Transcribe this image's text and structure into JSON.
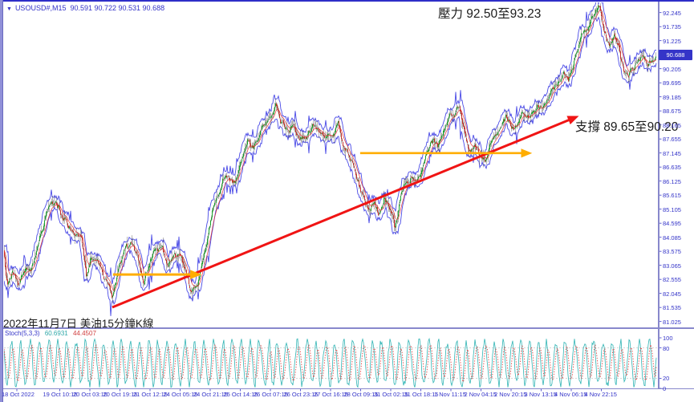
{
  "window": {
    "symbol": "USOUSD#,M15",
    "quote": "90.591 90.722 90.531 90.688",
    "dropdown_icon": "▼"
  },
  "chart_data": {
    "type": "candlestick",
    "symbol": "USOUSD#",
    "timeframe": "M15",
    "title": "USOUSD#,M15 90.591 90.722 90.531 90.688",
    "ohlc": {
      "open": 90.591,
      "high": 90.722,
      "low": 90.531,
      "close": 90.688
    },
    "legend_position": "top-left",
    "grid": "off",
    "price_axis": {
      "ticks": [
        "92.245",
        "91.735",
        "91.225",
        "90.205",
        "89.695",
        "89.185",
        "88.675",
        "88.165",
        "87.655",
        "87.145",
        "86.635",
        "86.125",
        "85.615",
        "85.105",
        "84.595",
        "84.085",
        "83.575",
        "83.065",
        "82.555",
        "82.045",
        "81.535",
        "81.025"
      ],
      "current_price": "90.688",
      "range": [
        81.025,
        92.245
      ]
    },
    "time_axis": [
      "18 Oct 2022",
      "19 Oct 10:15",
      "20 Oct 03:15",
      "20 Oct 19:15",
      "21 Oct 12:15",
      "24 Oct 05:15",
      "24 Oct 21:15",
      "25 Oct 14:15",
      "26 Oct 07:15",
      "26 Oct 23:15",
      "27 Oct 16:15",
      "28 Oct 09:15",
      "31 Oct 02:15",
      "31 Oct 18:15",
      "1 Nov 11:15",
      "2 Nov 04:15",
      "2 Nov 20:15",
      "3 Nov 13:15",
      "4 Nov 06:15",
      "4 Nov 22:15"
    ],
    "price_path_anchors": [
      [
        0.0,
        83.6
      ],
      [
        0.006,
        82.3
      ],
      [
        0.014,
        82.9
      ],
      [
        0.024,
        82.5
      ],
      [
        0.034,
        83.0
      ],
      [
        0.044,
        83.3
      ],
      [
        0.054,
        84.2
      ],
      [
        0.064,
        85.1
      ],
      [
        0.07,
        85.45
      ],
      [
        0.08,
        85.2
      ],
      [
        0.09,
        84.8
      ],
      [
        0.1,
        84.5
      ],
      [
        0.11,
        84.1
      ],
      [
        0.12,
        83.8
      ],
      [
        0.127,
        82.5
      ],
      [
        0.134,
        83.3
      ],
      [
        0.143,
        83.0
      ],
      [
        0.152,
        82.6
      ],
      [
        0.16,
        82.3
      ],
      [
        0.168,
        81.95
      ],
      [
        0.176,
        82.9
      ],
      [
        0.186,
        83.6
      ],
      [
        0.196,
        83.7
      ],
      [
        0.206,
        83.2
      ],
      [
        0.214,
        82.4
      ],
      [
        0.222,
        83.1
      ],
      [
        0.232,
        83.6
      ],
      [
        0.242,
        83.7
      ],
      [
        0.252,
        83.1
      ],
      [
        0.262,
        83.5
      ],
      [
        0.272,
        83.2
      ],
      [
        0.28,
        82.6
      ],
      [
        0.288,
        81.95
      ],
      [
        0.296,
        82.3
      ],
      [
        0.306,
        83.2
      ],
      [
        0.316,
        84.3
      ],
      [
        0.326,
        85.4
      ],
      [
        0.336,
        86.2
      ],
      [
        0.346,
        86.35
      ],
      [
        0.356,
        86.1
      ],
      [
        0.366,
        87.1
      ],
      [
        0.374,
        87.85
      ],
      [
        0.382,
        87.5
      ],
      [
        0.392,
        87.75
      ],
      [
        0.402,
        88.2
      ],
      [
        0.412,
        88.7
      ],
      [
        0.417,
        89.0
      ],
      [
        0.424,
        88.4
      ],
      [
        0.434,
        88.0
      ],
      [
        0.444,
        88.15
      ],
      [
        0.454,
        87.6
      ],
      [
        0.464,
        87.9
      ],
      [
        0.474,
        88.3
      ],
      [
        0.484,
        87.8
      ],
      [
        0.494,
        87.35
      ],
      [
        0.504,
        87.8
      ],
      [
        0.513,
        88.15
      ],
      [
        0.523,
        87.4
      ],
      [
        0.533,
        86.9
      ],
      [
        0.543,
        86.3
      ],
      [
        0.552,
        85.4
      ],
      [
        0.56,
        84.95
      ],
      [
        0.568,
        85.3
      ],
      [
        0.576,
        84.9
      ],
      [
        0.584,
        85.6
      ],
      [
        0.592,
        85.2
      ],
      [
        0.6,
        84.35
      ],
      [
        0.608,
        85.4
      ],
      [
        0.616,
        85.95
      ],
      [
        0.624,
        86.3
      ],
      [
        0.632,
        85.95
      ],
      [
        0.64,
        86.4
      ],
      [
        0.65,
        87.1
      ],
      [
        0.658,
        87.5
      ],
      [
        0.666,
        87.2
      ],
      [
        0.674,
        87.8
      ],
      [
        0.682,
        88.35
      ],
      [
        0.69,
        88.65
      ],
      [
        0.698,
        89.0
      ],
      [
        0.706,
        88.15
      ],
      [
        0.714,
        87.45
      ],
      [
        0.722,
        87.7
      ],
      [
        0.73,
        87.15
      ],
      [
        0.738,
        86.95
      ],
      [
        0.746,
        87.5
      ],
      [
        0.754,
        87.85
      ],
      [
        0.762,
        88.2
      ],
      [
        0.77,
        88.5
      ],
      [
        0.778,
        88.25
      ],
      [
        0.786,
        88.1
      ],
      [
        0.794,
        88.65
      ],
      [
        0.802,
        88.4
      ],
      [
        0.81,
        88.6
      ],
      [
        0.818,
        88.9
      ],
      [
        0.826,
        88.7
      ],
      [
        0.834,
        89.1
      ],
      [
        0.842,
        89.4
      ],
      [
        0.85,
        89.8
      ],
      [
        0.858,
        90.15
      ],
      [
        0.866,
        90.0
      ],
      [
        0.874,
        90.5
      ],
      [
        0.882,
        91.0
      ],
      [
        0.89,
        91.4
      ],
      [
        0.898,
        91.8
      ],
      [
        0.906,
        92.1
      ],
      [
        0.914,
        92.3
      ],
      [
        0.92,
        91.6
      ],
      [
        0.928,
        91.05
      ],
      [
        0.936,
        91.55
      ],
      [
        0.944,
        90.9
      ],
      [
        0.951,
        90.15
      ],
      [
        0.958,
        89.75
      ],
      [
        0.966,
        90.15
      ],
      [
        0.973,
        90.45
      ],
      [
        0.981,
        90.65
      ],
      [
        0.988,
        90.45
      ],
      [
        1.0,
        90.69
      ]
    ],
    "annotations": {
      "resistance": {
        "text": "壓力 92.50至93.23",
        "levels": [
          92.5,
          93.23
        ]
      },
      "support": {
        "text": "支撐 89.65至90.20",
        "levels": [
          89.65,
          90.2
        ]
      },
      "date_note": "2022年11月7日 美油15分鐘K線"
    },
    "drawings": {
      "trendline": {
        "from_t": 0.166,
        "from_price": 81.54,
        "to_t": 0.877,
        "to_price": 88.45
      },
      "h_segment_1": {
        "price": 82.73,
        "t_from": 0.167,
        "t_to": 0.298
      },
      "h_segment_2": {
        "price": 87.14,
        "t_from": 0.546,
        "t_to": 0.805
      }
    },
    "stochastic": {
      "label": "Stoch(5,3,3)",
      "k_value": "60.6931",
      "d_value": "44.4507",
      "axis_ticks": [
        "100",
        "80",
        "20",
        "0"
      ],
      "signal_levels": [
        80,
        20
      ],
      "range": [
        0,
        100
      ]
    }
  },
  "colors": {
    "axis_text": "#3434C8",
    "frame": "#8888CC",
    "top_border": "#2E2EC8",
    "band": "#4A4AE6",
    "candle_up": "#18A428",
    "candle_down": "#C43028",
    "wick": "#3A3A3A",
    "ma": "#E02424",
    "trend": "#F01414",
    "yellow": "#FFAD00",
    "stoch_k": "#2FB4B4",
    "stoch_d": "#E04040",
    "stoch_grid": "#C9C9C9",
    "price_box_bg": "#3434C8",
    "price_box_text": "#FFFFFF"
  }
}
